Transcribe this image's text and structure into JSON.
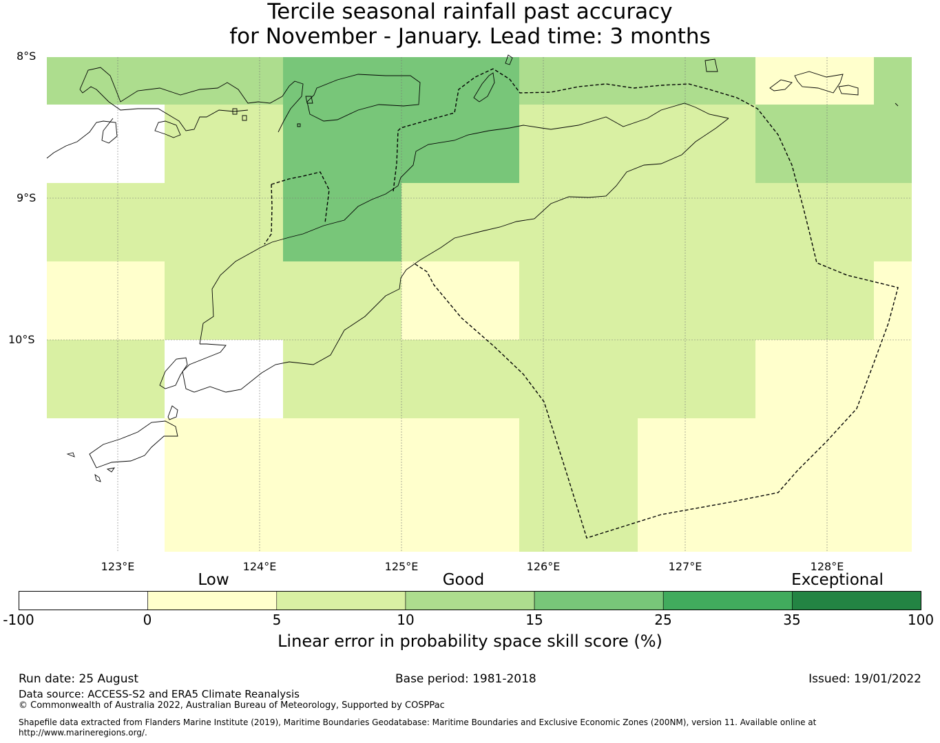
{
  "title": {
    "line1": "Tercile seasonal rainfall past accuracy",
    "line2": "for November - January. Lead time: 3 months"
  },
  "axes": {
    "lat_labels": [
      "8°S",
      "9°S",
      "10°S"
    ],
    "lon_labels": [
      "123°E",
      "124°E",
      "125°E",
      "126°E",
      "127°E",
      "128°E"
    ]
  },
  "colorbar": {
    "category_labels": [
      "Low",
      "Good",
      "Exceptional"
    ],
    "ticks": [
      "-100",
      "0",
      "5",
      "10",
      "15",
      "25",
      "35",
      "100"
    ],
    "colors": [
      "#ffffff",
      "#ffffcc",
      "#d9f0a3",
      "#addd8e",
      "#78c679",
      "#41ab5d",
      "#238443"
    ],
    "label": "Linear error in probability space skill score (%)"
  },
  "grid_legend_colors": {
    "white": "#ffffff",
    "c0_5": "#ffffcc",
    "c5_10": "#d9f0a3",
    "c10_15": "#addd8e",
    "c15_25": "#78c679"
  },
  "skill_grid": [
    [
      "10-15",
      "10-15",
      "15-25",
      "15-25",
      "10-15",
      "10-15",
      "0-5",
      "10-15"
    ],
    [
      "-100-0",
      "5-10",
      "15-25",
      "15-25",
      "5-10",
      "5-10",
      "10-15",
      "10-15"
    ],
    [
      "5-10",
      "5-10",
      "15-25",
      "5-10",
      "5-10",
      "5-10",
      "5-10",
      "5-10"
    ],
    [
      "0-5",
      "5-10",
      "5-10",
      "0-5",
      "5-10",
      "5-10",
      "5-10",
      "0-5"
    ],
    [
      "5-10",
      "-100-0",
      "5-10",
      "5-10",
      "5-10",
      "5-10",
      "0-5",
      "0-5"
    ],
    [
      "-100-0",
      "0-5",
      "0-5",
      "0-5",
      "5-10",
      "0-5",
      "0-5",
      "0-5"
    ],
    [
      "-100-0",
      "0-5",
      "0-5",
      "0-5",
      "5-10",
      "0-5",
      "0-5",
      "0-5"
    ]
  ],
  "footer": {
    "run_date": "Run date: 25 August",
    "base_period": "Base period: 1981-2018",
    "issued": "Issued: 19/01/2022",
    "data_source": "Data source: ACCESS-S2 and ERA5 Climate Reanalysis",
    "copyright": "© Commonwealth of Australia 2022, Australian Bureau of Meteorology, Supported by COSPPac",
    "shapefile_line1": "Shapefile data extracted from Flanders Marine Institute (2019), Maritime Boundaries Geodatabase: Maritime Boundaries and Exclusive Economic Zones (200NM), version 11. Available online at",
    "shapefile_line2": "http://www.marineregions.org/."
  }
}
